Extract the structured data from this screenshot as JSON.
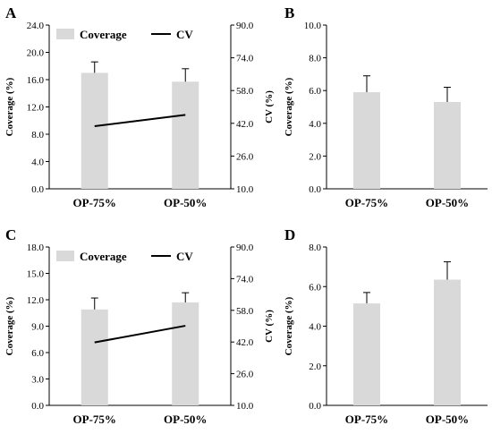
{
  "chart_data": [
    {
      "panel": "A",
      "type": "bar",
      "categories": [
        "OP-75%",
        "OP-50%"
      ],
      "series": [
        {
          "name": "Coverage",
          "values": [
            17.0,
            15.7
          ],
          "errors": [
            1.6,
            1.9
          ],
          "axis": "left"
        },
        {
          "name": "CV",
          "values": [
            40.6,
            46.1
          ],
          "axis": "right",
          "type": "line"
        }
      ],
      "ylabel": "Coverage (%)",
      "ylim": [
        0,
        24
      ],
      "yticks": [
        "0.0",
        "4.0",
        "8.0",
        "12.0",
        "16.0",
        "20.0",
        "24.0"
      ],
      "y2label": "CV (%)",
      "y2lim": [
        10,
        90
      ],
      "y2ticks": [
        "10.0",
        "26.0",
        "42.0",
        "58.0",
        "74.0",
        "90.0"
      ],
      "legend": {
        "position": "top-left",
        "items": [
          "Coverage",
          "CV"
        ]
      }
    },
    {
      "panel": "B",
      "type": "bar",
      "categories": [
        "OP-75%",
        "OP-50%"
      ],
      "series": [
        {
          "name": "Coverage",
          "values": [
            5.9,
            5.3
          ],
          "errors": [
            1.0,
            0.9
          ]
        }
      ],
      "ylabel": "Coverage (%)",
      "ylim": [
        0,
        10
      ],
      "yticks": [
        "0.0",
        "2.0",
        "4.0",
        "6.0",
        "8.0",
        "10.0"
      ]
    },
    {
      "panel": "C",
      "type": "bar",
      "categories": [
        "OP-75%",
        "OP-50%"
      ],
      "series": [
        {
          "name": "Coverage",
          "values": [
            10.9,
            11.7
          ],
          "errors": [
            1.3,
            1.1
          ],
          "axis": "left"
        },
        {
          "name": "CV",
          "values": [
            41.8,
            50.2
          ],
          "axis": "right",
          "type": "line"
        }
      ],
      "ylabel": "Coverage (%)",
      "ylim": [
        0,
        18
      ],
      "yticks": [
        "0.0",
        "3.0",
        "6.0",
        "9.0",
        "12.0",
        "15.0",
        "18.0"
      ],
      "y2label": "CV (%)",
      "y2lim": [
        10,
        90
      ],
      "y2ticks": [
        "10.0",
        "26.0",
        "42.0",
        "58.0",
        "74.0",
        "90.0"
      ],
      "legend": {
        "position": "top-left",
        "items": [
          "Coverage",
          "CV"
        ]
      }
    },
    {
      "panel": "D",
      "type": "bar",
      "categories": [
        "OP-75%",
        "OP-50%"
      ],
      "series": [
        {
          "name": "Coverage",
          "values": [
            5.15,
            6.35
          ],
          "errors": [
            0.55,
            0.9
          ]
        }
      ],
      "ylabel": "Coverage (%)",
      "ylim": [
        0,
        8
      ],
      "yticks": [
        "0.0",
        "2.0",
        "4.0",
        "6.0",
        "8.0"
      ]
    }
  ],
  "colors": {
    "bar": "#d9d9d9",
    "line": "#000000",
    "axis": "#000000"
  }
}
